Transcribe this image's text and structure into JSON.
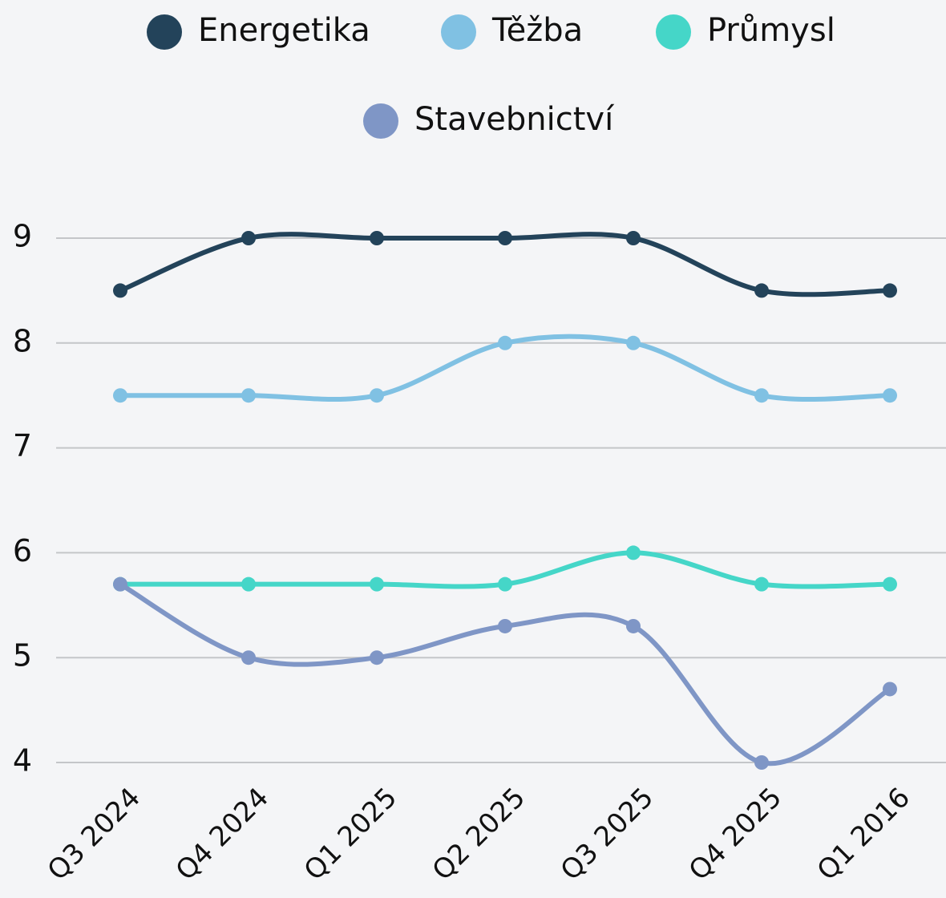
{
  "chart_data": {
    "type": "line",
    "categories": [
      "Q3 2024",
      "Q4 2024",
      "Q1 2025",
      "Q2 2025",
      "Q3 2025",
      "Q4 2025",
      "Q1 2016"
    ],
    "series": [
      {
        "name": "Energetika",
        "color": "#23435a",
        "values": [
          8.5,
          9,
          9,
          9,
          9,
          8.5,
          8.5
        ]
      },
      {
        "name": "Těžba",
        "color": "#80c1e3",
        "values": [
          7.5,
          7.5,
          7.5,
          8,
          8,
          7.5,
          7.5
        ]
      },
      {
        "name": "Průmysl",
        "color": "#45d6c8",
        "values": [
          5.7,
          5.7,
          5.7,
          5.7,
          6,
          5.7,
          5.7
        ]
      },
      {
        "name": "Stavebnictví",
        "color": "#7f96c6",
        "values": [
          5.7,
          5,
          5,
          5.3,
          5.3,
          4,
          4.7
        ]
      }
    ],
    "ylim": [
      4,
      9
    ],
    "yticks": [
      4,
      5,
      6,
      7,
      8,
      9
    ],
    "grid": true,
    "legend": "top"
  }
}
